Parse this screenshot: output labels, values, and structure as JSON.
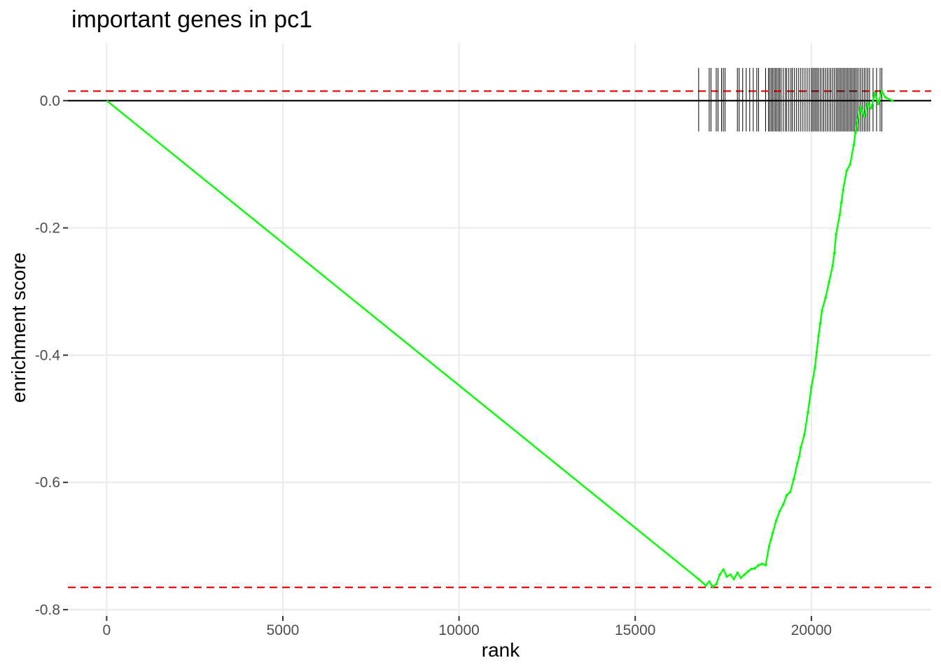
{
  "chart_data": {
    "type": "line",
    "title": "important genes in pc1",
    "xlabel": "rank",
    "ylabel": "enrichment score",
    "xlim": [
      -1100,
      23400
    ],
    "ylim": [
      -0.81,
      0.09
    ],
    "x_ticks": [
      0,
      5000,
      10000,
      15000,
      20000
    ],
    "x_tick_labels": [
      "0",
      "5000",
      "10000",
      "15000",
      "20000"
    ],
    "y_ticks": [
      0.0,
      -0.2,
      -0.4,
      -0.6,
      -0.8
    ],
    "y_tick_labels": [
      "0.0",
      "-0.2",
      "-0.4",
      "-0.6",
      "-0.8"
    ],
    "grid": true,
    "legend": "none",
    "zero_line": 0.0,
    "thresholds": [
      0.015,
      -0.765
    ],
    "series": [
      {
        "x": [
          0,
          16800,
          17000,
          17100,
          17200,
          17300,
          17400,
          17500,
          17600,
          17700,
          17800,
          17900,
          18000,
          18100,
          18200,
          18300,
          18400,
          18500,
          18600,
          18700,
          18800,
          18850,
          18900,
          19000,
          19100,
          19200,
          19300,
          19400,
          19500,
          19600,
          19650,
          19700,
          19800,
          19900,
          20000,
          20100,
          20150,
          20200,
          20250,
          20300,
          20400,
          20500,
          20600,
          20650,
          20700,
          20800,
          20850,
          20900,
          21000,
          21100,
          21200,
          21250,
          21300,
          21400,
          21500,
          21600,
          21700,
          21800,
          21900,
          22000,
          22100,
          22300
        ],
        "y": [
          0.0,
          -0.752,
          -0.762,
          -0.756,
          -0.764,
          -0.76,
          -0.745,
          -0.737,
          -0.748,
          -0.745,
          -0.752,
          -0.742,
          -0.75,
          -0.745,
          -0.74,
          -0.736,
          -0.735,
          -0.73,
          -0.728,
          -0.73,
          -0.7,
          -0.69,
          -0.68,
          -0.66,
          -0.645,
          -0.635,
          -0.62,
          -0.615,
          -0.595,
          -0.57,
          -0.56,
          -0.545,
          -0.525,
          -0.49,
          -0.45,
          -0.42,
          -0.395,
          -0.37,
          -0.35,
          -0.33,
          -0.31,
          -0.285,
          -0.26,
          -0.24,
          -0.21,
          -0.18,
          -0.16,
          -0.14,
          -0.11,
          -0.1,
          -0.07,
          -0.05,
          -0.035,
          -0.01,
          -0.025,
          -0.005,
          -0.012,
          0.012,
          -0.005,
          0.015,
          0.005,
          0.0
        ]
      }
    ],
    "hits": [
      16800,
      17100,
      17150,
      17300,
      17350,
      17450,
      17500,
      17550,
      17900,
      17950,
      18050,
      18150,
      18250,
      18350,
      18450,
      18500,
      18700,
      18780,
      18820,
      18860,
      18900,
      18940,
      18980,
      19020,
      19060,
      19100,
      19140,
      19200,
      19260,
      19300,
      19360,
      19420,
      19460,
      19520,
      19580,
      19640,
      19700,
      19760,
      19820,
      19880,
      19940,
      20000,
      20040,
      20080,
      20120,
      20160,
      20200,
      20250,
      20300,
      20350,
      20400,
      20450,
      20500,
      20550,
      20600,
      20650,
      20700,
      20740,
      20780,
      20820,
      20860,
      20900,
      20940,
      20980,
      21020,
      21060,
      21100,
      21140,
      21180,
      21220,
      21260,
      21300,
      21350,
      21400,
      21450,
      21500,
      21550,
      21600,
      21650,
      21750,
      21850,
      21950,
      22000
    ],
    "colors": {
      "series": "#00ff00",
      "threshold": "#ff0000",
      "zero_line": "#000000",
      "hits": "#000000",
      "grid": "#ebebeb"
    }
  }
}
